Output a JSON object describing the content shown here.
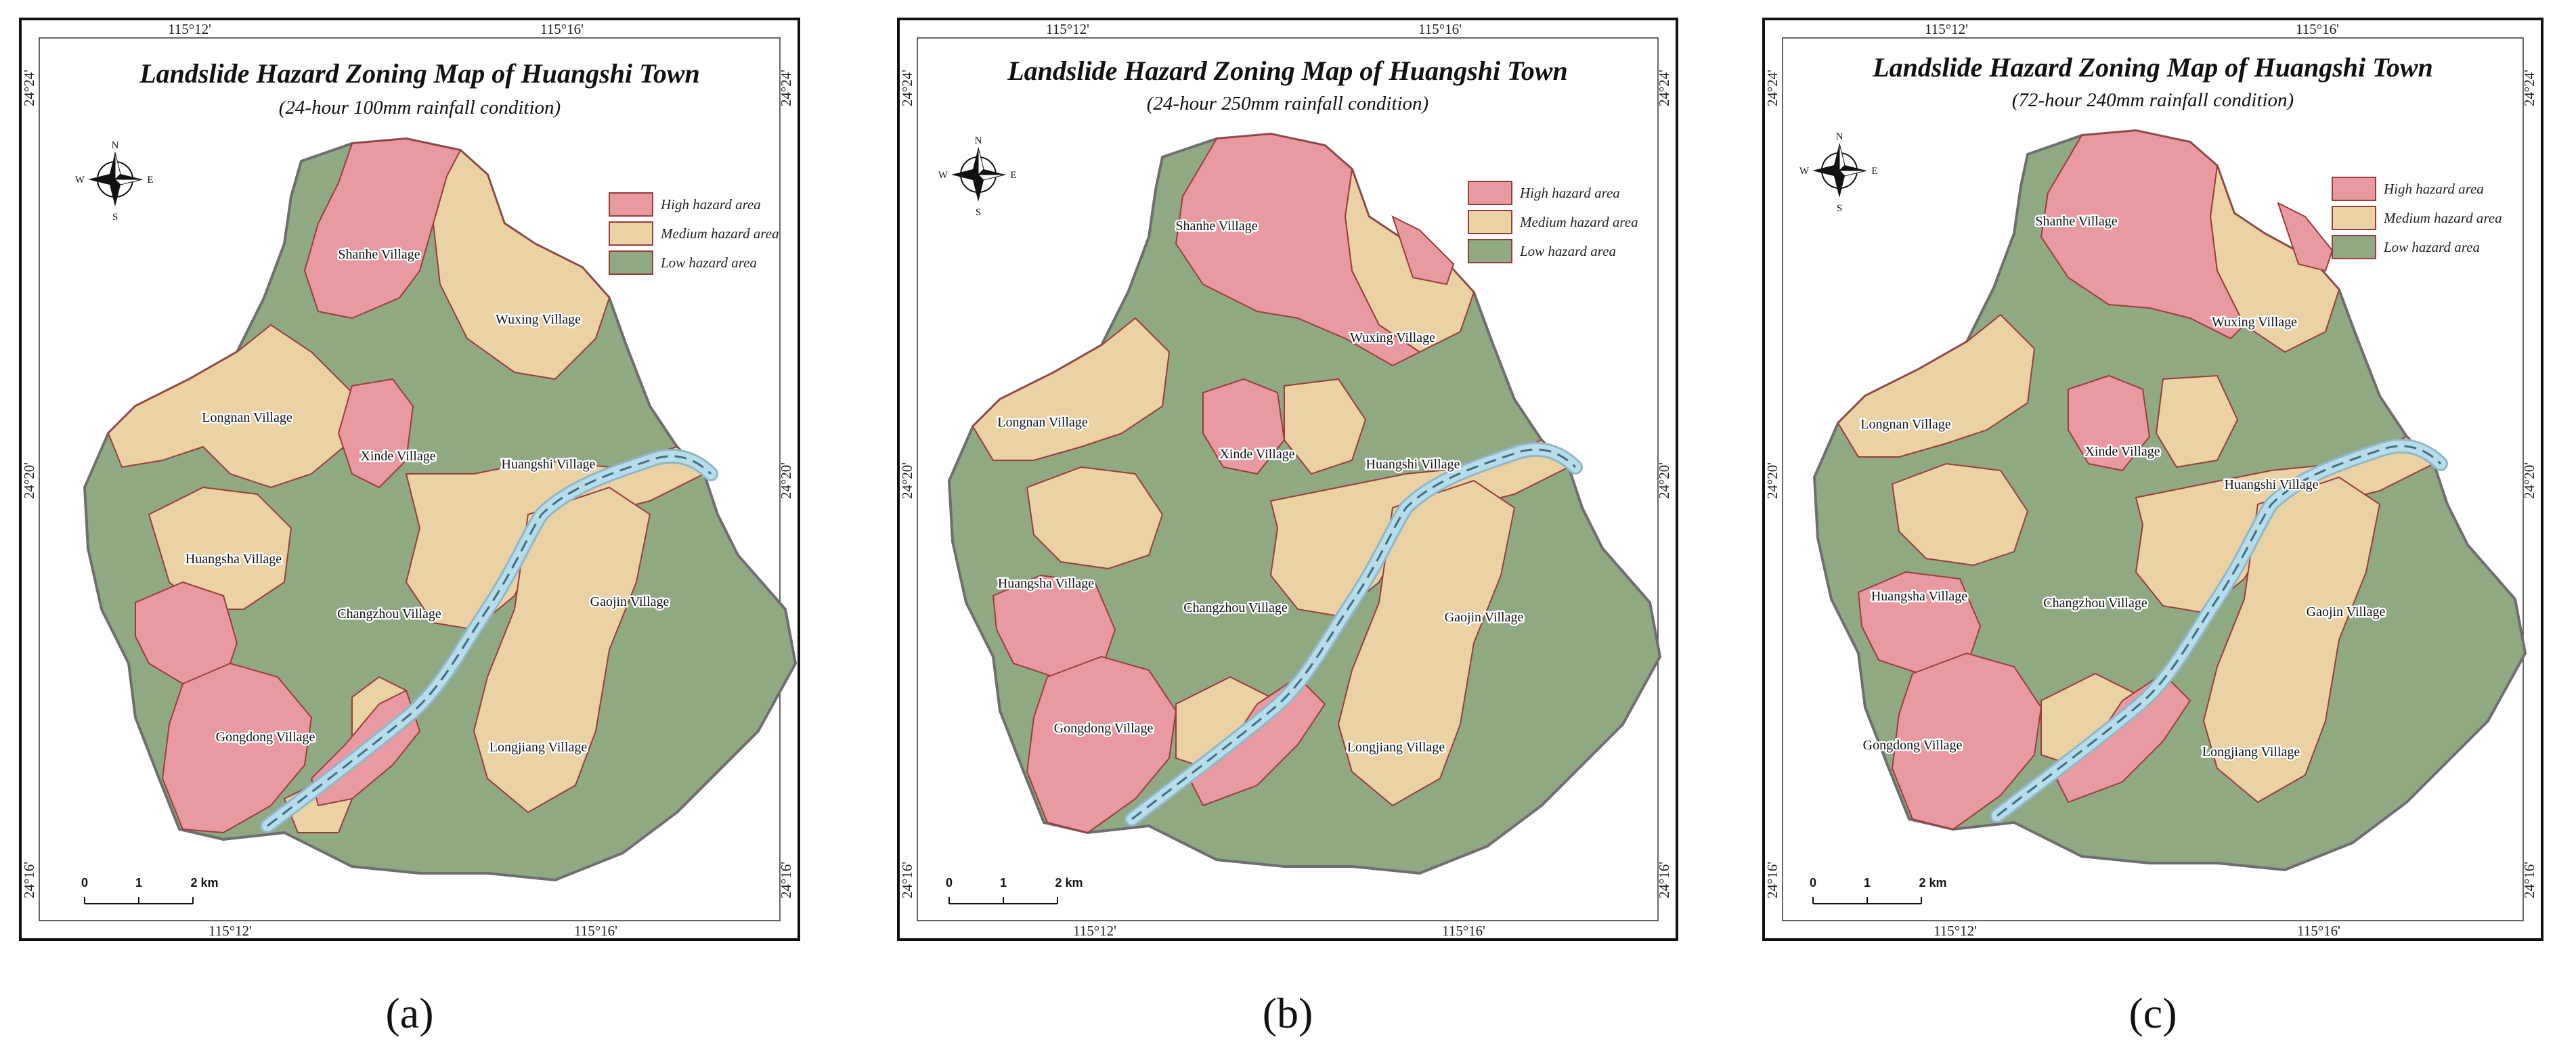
{
  "colors": {
    "high": "#e89aa0",
    "medium": "#ead2a4",
    "low": "#8fa983",
    "river": "#b7dcea",
    "outline": "#9b3b3b"
  },
  "panels": [
    {
      "id": "a",
      "caption": "(a)",
      "title": "Landslide Hazard Zoning Map of Huangshi Town",
      "subtitle": "(24-hour 100mm rainfall condition)",
      "coords": {
        "top": [
          "115°12'",
          "115°16'"
        ],
        "bottom": [
          "115°12'",
          "115°16'"
        ],
        "left": [
          "24°24'",
          "24°20'",
          "24°16'"
        ],
        "right": [
          "24°24'",
          "24°20'",
          "24°16'"
        ]
      },
      "legend": [
        "High hazard area",
        "Medium hazard area",
        "Low hazard area"
      ],
      "compass": {
        "n": "N",
        "s": "S",
        "e": "E",
        "w": "W"
      },
      "scale": {
        "labels": [
          "0",
          "1",
          "2 km"
        ]
      },
      "villages": [
        "Shanhe Village",
        "Wuxing Village",
        "Longnan Village",
        "Xinde Village",
        "Huangshi Village",
        "Huangsha Village",
        "Changzhou Village",
        "Gaojin Village",
        "Gongdong Village",
        "Longjiang Village"
      ]
    },
    {
      "id": "b",
      "caption": "(b)",
      "title": "Landslide Hazard Zoning Map of Huangshi Town",
      "subtitle": "(24-hour 250mm rainfall condition)",
      "coords": {
        "top": [
          "115°12'",
          "115°16'"
        ],
        "bottom": [
          "115°12'",
          "115°16'"
        ],
        "left": [
          "24°24'",
          "24°20'",
          "24°16'"
        ],
        "right": [
          "24°24'",
          "24°20'",
          "24°16'"
        ]
      },
      "legend": [
        "High hazard area",
        "Medium hazard area",
        "Low hazard area"
      ],
      "compass": {
        "n": "N",
        "s": "S",
        "e": "E",
        "w": "W"
      },
      "scale": {
        "labels": [
          "0",
          "1",
          "2 km"
        ]
      },
      "villages": [
        "Shanhe Village",
        "Wuxing Village",
        "Longnan Village",
        "Xinde Village",
        "Huangshi Village",
        "Huangsha Village",
        "Changzhou Village",
        "Gaojin Village",
        "Gongdong Village",
        "Longjiang Village"
      ]
    },
    {
      "id": "c",
      "caption": "(c)",
      "title": "Landslide Hazard Zoning Map of Huangshi Town",
      "subtitle": "(72-hour 240mm rainfall condition)",
      "coords": {
        "top": [
          "115°12'",
          "115°16'"
        ],
        "bottom": [
          "115°12'",
          "115°16'"
        ],
        "left": [
          "24°24'",
          "24°20'",
          "24°16'"
        ],
        "right": [
          "24°24'",
          "24°20'",
          "24°16'"
        ]
      },
      "legend": [
        "High hazard area",
        "Medium hazard area",
        "Low hazard area"
      ],
      "compass": {
        "n": "N",
        "s": "S",
        "e": "E",
        "w": "W"
      },
      "scale": {
        "labels": [
          "0",
          "1",
          "2 km"
        ]
      },
      "villages": [
        "Shanhe Village",
        "Wuxing Village",
        "Longnan Village",
        "Xinde Village",
        "Huangshi Village",
        "Huangsha Village",
        "Changzhou Village",
        "Gaojin Village",
        "Gongdong Village",
        "Longjiang Village"
      ]
    }
  ]
}
